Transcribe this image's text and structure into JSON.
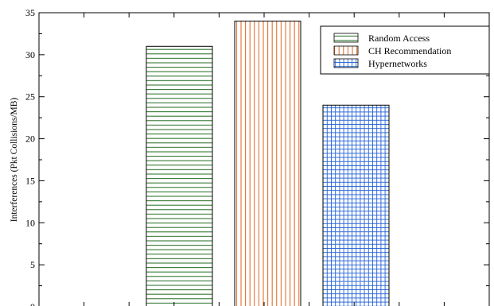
{
  "chart_data": {
    "type": "bar",
    "title": "",
    "xlabel": "",
    "ylabel": "Interferences (Pkt Collisions/MB)",
    "ylim": [
      0,
      35
    ],
    "yticks": [
      0,
      5,
      10,
      15,
      20,
      25,
      30,
      35
    ],
    "grid": false,
    "legend_position": "top-right",
    "series": [
      {
        "name": "Random Access",
        "value": 31,
        "color": "#1e6b1e",
        "pattern": "horizontal-lines"
      },
      {
        "name": "CH Recommendation",
        "value": 34,
        "color": "#e0621a",
        "pattern": "vertical-lines"
      },
      {
        "name": "Hypernetworks",
        "value": 24,
        "color": "#1f5fd6",
        "pattern": "grid"
      }
    ]
  }
}
